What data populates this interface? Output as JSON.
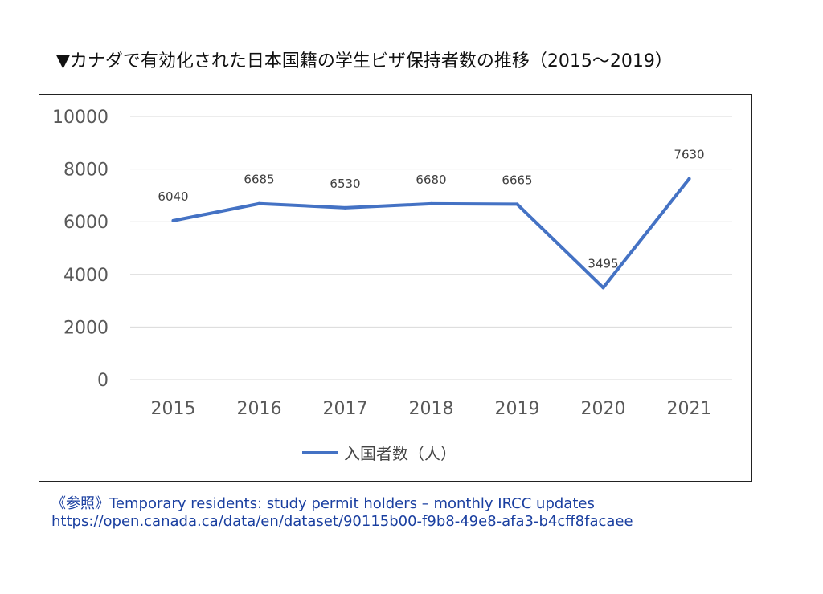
{
  "title": "▼カナダで有効化された日本国籍の学生ビザ保持者数の推移（2015～2019）",
  "chart_data": {
    "type": "line",
    "categories": [
      "2015",
      "2016",
      "2017",
      "2018",
      "2019",
      "2020",
      "2021"
    ],
    "series": [
      {
        "name": "入国者数（人）",
        "values": [
          6040,
          6685,
          6530,
          6680,
          6665,
          3495,
          7630
        ],
        "color": "#4472c4"
      }
    ],
    "data_labels": [
      "6040",
      "6685",
      "6530",
      "6680",
      "6665",
      "3495",
      "7630"
    ],
    "y_ticks": [
      "0",
      "2000",
      "4000",
      "6000",
      "8000",
      "10000"
    ],
    "ylim": [
      0,
      10000
    ],
    "grid": true,
    "legend_position": "bottom"
  },
  "reference": {
    "line1": "《参照》Temporary residents: study permit holders – monthly IRCC updates",
    "line2": "https://open.canada.ca/data/en/dataset/90115b00-f9b8-49e8-afa3-b4cff8facaee"
  }
}
